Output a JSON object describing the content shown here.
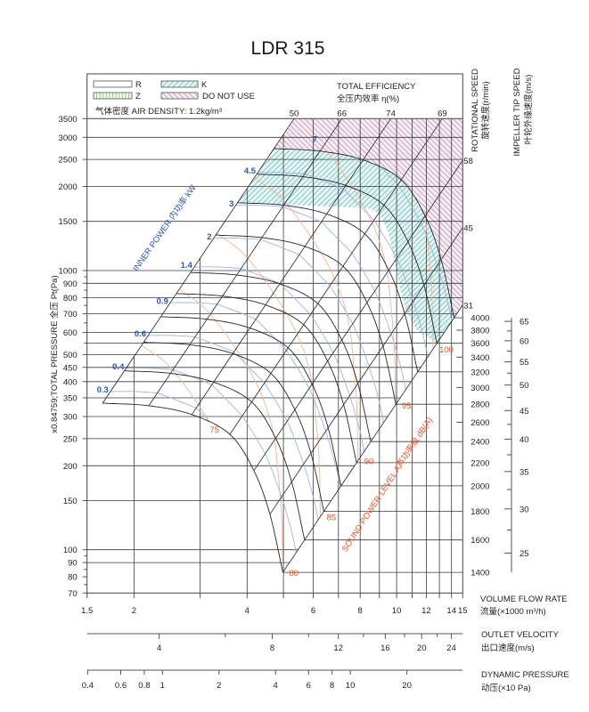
{
  "page": {
    "title": "LDR 315"
  },
  "legend": {
    "items": [
      {
        "key": "R",
        "label": "R",
        "style": "plain"
      },
      {
        "key": "Z",
        "label": "Z",
        "style": "vertical-hatch"
      },
      {
        "key": "K",
        "label": "K",
        "style": "diagonal-hatch"
      },
      {
        "key": "DO_NOT_USE",
        "label": "DO NOT USE",
        "style": "diagonal-hatch"
      }
    ],
    "air_density_text": "气体密度 AIR DENSITY: 1.2kg/m³",
    "efficiency_title": "TOTAL EFFICIENCY",
    "efficiency_title_cn": "全压内效率 η(%)"
  },
  "chart_data": {
    "type": "line",
    "title": "LDR 315",
    "x_axis": {
      "label": "VOLUME FLOW RATE",
      "label_cn": "流量(×1000 m³/h)",
      "scale": "log",
      "range": [
        1.5,
        15
      ],
      "tick_labels": [
        1.5,
        2,
        4,
        6,
        8,
        10,
        12,
        14,
        15
      ],
      "gridlines": [
        2,
        3,
        4,
        5,
        6,
        7,
        8,
        9,
        10,
        11,
        12,
        13,
        14
      ]
    },
    "y_axis": {
      "label": "x0.84759;TOTAL PRESSURE 全压 Pt(Pa)",
      "scale": "log",
      "range": [
        70,
        3500
      ],
      "pressure_factor": 0.84759,
      "tick_labels": [
        3500,
        3000,
        2500,
        2000,
        1500,
        1000,
        900,
        800,
        700,
        600,
        500,
        450,
        400,
        350,
        300,
        250,
        200,
        150,
        100,
        90,
        80,
        70
      ],
      "minor_ticks": [
        950,
        850,
        750,
        650,
        550,
        95,
        85,
        75
      ],
      "gridlines": [
        3000,
        2500,
        2000,
        1500,
        1000,
        900,
        800,
        700,
        600,
        550,
        500,
        450,
        400,
        350,
        300,
        250,
        200,
        150,
        100,
        90
      ]
    },
    "speed_axis": {
      "label": "ROTATIONAL SPEED",
      "label_cn": "旋转速度(r/min)",
      "tick_labels": [
        4000,
        3800,
        3600,
        3400,
        3200,
        3000,
        2800,
        2600,
        2400,
        2200,
        2000,
        1800,
        1600,
        1400
      ],
      "curve_speeds": [
        1400,
        1600,
        1800,
        2000,
        2200,
        2400,
        2800,
        3200,
        3600,
        4000
      ]
    },
    "tip_speed_axis": {
      "label": "IMPELLER TIP SPEED",
      "label_cn": "叶轮外缘速度(m/s)",
      "tick_labels": [
        65,
        60,
        55,
        50,
        45,
        40,
        35,
        30,
        25
      ],
      "minor_ticks": [
        62.5,
        57.5,
        52.5,
        47.5,
        42.5,
        37.5,
        32.5,
        27.5
      ],
      "impeller_diameter_m": 0.315
    },
    "outlet_velocity_axis": {
      "label": "OUTLET VELOCITY",
      "label_cn": "出口速度(m/s)",
      "tick_labels": [
        4,
        8,
        12,
        16,
        20,
        24
      ],
      "minor_ticks": [
        6,
        10,
        14,
        18,
        22
      ],
      "flow_per_velocity": 0.5832
    },
    "dynamic_pressure_axis": {
      "label": "DYNAMIC PRESSURE",
      "label_cn": "动压(×10 Pa)",
      "tick_labels": [
        0.4,
        0.6,
        0.8,
        1,
        2,
        4,
        6,
        8,
        10,
        20
      ],
      "air_density": 1.2
    },
    "fan_curve_base": {
      "rpm": 1400,
      "points": [
        {
          "flow": 1.65,
          "pressure": 335,
          "efficiency": 50
        },
        {
          "flow": 2.19,
          "pressure": 328,
          "efficiency": 66
        },
        {
          "flow": 2.85,
          "pressure": 305,
          "efficiency": 74
        },
        {
          "flow": 3.6,
          "pressure": 259,
          "efficiency": 69
        },
        {
          "flow": 4.17,
          "pressure": 192,
          "efficiency": 58
        },
        {
          "flow": 4.6,
          "pressure": 134,
          "efficiency": 45
        },
        {
          "flow": 4.98,
          "pressure": 83,
          "efficiency": 31
        }
      ]
    },
    "inner_power": {
      "label": "INNER POWER 内功率 kW",
      "unit": "kW",
      "levels": [
        0.3,
        0.4,
        0.6,
        0.9,
        1.4,
        2,
        3,
        4.5,
        7
      ]
    },
    "sound_power": {
      "label": "SOUND POWER LEVEL A声功率级 dB(A)",
      "unit": "dB(A)",
      "levels": [
        75,
        80,
        85,
        90,
        95,
        100
      ],
      "reference_level": 80,
      "db_per_decade_rpm": 50,
      "reference_path": [
        [
          2.637,
          857.5
        ],
        [
          3.146,
          713.6
        ],
        [
          3.844,
          494.3
        ],
        [
          4.367,
          359.7
        ],
        [
          4.697,
          261.6
        ],
        [
          4.835,
          190.4
        ],
        [
          4.942,
          131.9
        ],
        [
          4.98,
          83
        ]
      ]
    },
    "regions": {
      "K": {
        "upper_boundary_rpm": 4000,
        "lower_boundary": [
          [
            12.79,
            547.7
          ],
          [
            11.27,
            616.1
          ],
          [
            10.62,
            713.6
          ],
          [
            10.22,
            857.5
          ],
          [
            9.89,
            1068
          ],
          [
            9.52,
            1361
          ],
          [
            9.01,
            1600
          ],
          [
            8.39,
            1672
          ],
          [
            6.64,
            1696
          ],
          [
            5.05,
            1721
          ],
          [
            3.77,
            1755
          ]
        ]
      },
      "DO_NOT_USE": {
        "lower_boundary_rpm": 4000
      }
    },
    "colors": {
      "fan_curve": "#262626",
      "inner_power_label": "#2f56a8",
      "inner_power_curve": "#9fb4dd",
      "sound_power_label": "#e0552a",
      "sound_power_curve": "#f2b596",
      "region_k": "#76c1c1",
      "region_do_not_use": "#c59bbd",
      "region_z": "#8ccb74"
    }
  }
}
